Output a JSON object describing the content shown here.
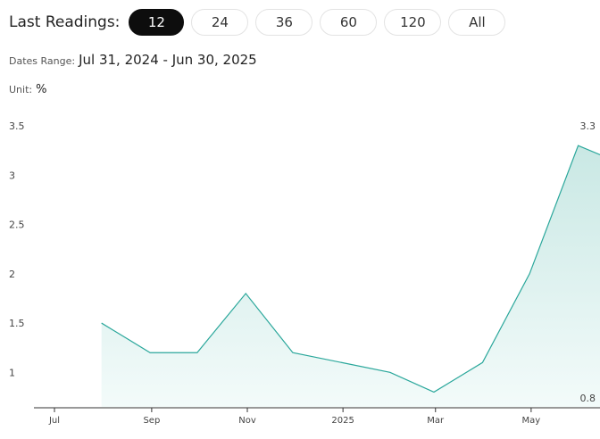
{
  "controls": {
    "label": "Last Readings:",
    "options": [
      "12",
      "24",
      "36",
      "60",
      "120",
      "All"
    ],
    "selected": "12"
  },
  "dates_range": {
    "label": "Dates Range:",
    "value": "Jul 31, 2024 - Jun 30, 2025"
  },
  "unit": {
    "label": "Unit:",
    "value": "%"
  },
  "colors": {
    "line": "#2aa79b",
    "fill_top": "#c9e8e4",
    "fill_bottom": "#f3fbfa",
    "active_bg": "#0d0d0d"
  },
  "chart_data": {
    "type": "area",
    "x": [
      "2024-07-31",
      "2024-08-31",
      "2024-09-30",
      "2024-10-31",
      "2024-11-30",
      "2024-12-31",
      "2025-01-31",
      "2025-02-28",
      "2025-03-31",
      "2025-04-30",
      "2025-05-31",
      "2025-06-30"
    ],
    "series": [
      {
        "values": [
          1.5,
          1.2,
          1.2,
          1.8,
          1.2,
          1.1,
          1.0,
          0.8,
          1.1,
          2.0,
          3.3,
          3.1
        ]
      }
    ],
    "x_tick_labels": [
      "Jul",
      "Sep",
      "Nov",
      "2025",
      "Mar",
      "May"
    ],
    "y_ticks": [
      "1",
      "1.5",
      "2",
      "2.5",
      "3",
      "3.5"
    ],
    "ylim": [
      0.65,
      3.6
    ],
    "max_label": "3.3",
    "min_label": "0.8",
    "grid": false,
    "legend": "none"
  }
}
